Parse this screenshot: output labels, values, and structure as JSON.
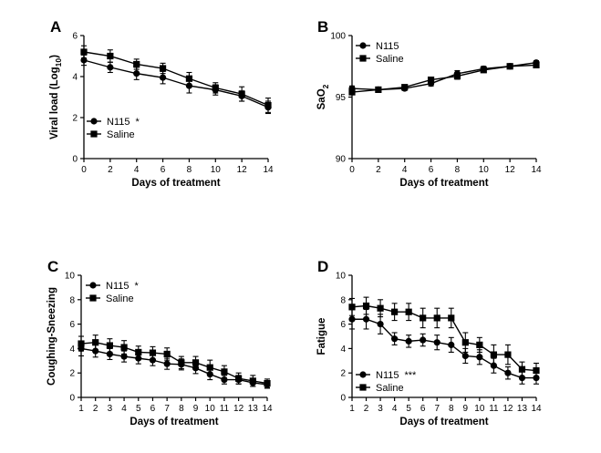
{
  "chart_data": [
    {
      "panel": "A",
      "type": "line",
      "ylabel_main": "Viral load (Log",
      "ylabel_sub": "10",
      "ylabel_end": ")",
      "xlabel": "Days of treatment",
      "x": [
        0,
        2,
        4,
        6,
        8,
        10,
        12,
        14
      ],
      "xticks": [
        "0",
        "2",
        "4",
        "6",
        "8",
        "10",
        "12",
        "14"
      ],
      "ylim": [
        0,
        6
      ],
      "yticks": [
        "0",
        "2",
        "4",
        "6"
      ],
      "legend_position": "bottom-left",
      "series": [
        {
          "name": "N115",
          "marker": "circle",
          "significance": "*",
          "values": [
            4.8,
            4.45,
            4.15,
            3.95,
            3.55,
            3.35,
            3.05,
            2.5
          ],
          "errors": [
            0.25,
            0.25,
            0.3,
            0.3,
            0.35,
            0.25,
            0.25,
            0.3
          ]
        },
        {
          "name": "Saline",
          "marker": "square",
          "significance": "",
          "values": [
            5.2,
            5.0,
            4.6,
            4.4,
            3.9,
            3.45,
            3.15,
            2.6
          ],
          "errors": [
            0.3,
            0.3,
            0.25,
            0.25,
            0.3,
            0.25,
            0.35,
            0.35
          ]
        }
      ]
    },
    {
      "panel": "B",
      "type": "line",
      "ylabel_main": "SaO",
      "ylabel_sub": "2",
      "ylabel_end": "",
      "xlabel": "Days of treatment",
      "x": [
        0,
        2,
        4,
        6,
        8,
        10,
        12,
        14
      ],
      "xticks": [
        "0",
        "2",
        "4",
        "6",
        "8",
        "10",
        "12",
        "14"
      ],
      "ylim": [
        90,
        100
      ],
      "yticks": [
        "90",
        "95",
        "100"
      ],
      "legend_position": "top-left",
      "series": [
        {
          "name": "N115",
          "marker": "circle",
          "significance": "",
          "values": [
            95.7,
            95.6,
            95.7,
            96.1,
            96.9,
            97.3,
            97.5,
            97.8
          ],
          "errors": [
            0.2,
            0.15,
            0.15,
            0.2,
            0.25,
            0.2,
            0.15,
            0.15
          ]
        },
        {
          "name": "Saline",
          "marker": "square",
          "significance": "",
          "values": [
            95.4,
            95.6,
            95.8,
            96.4,
            96.7,
            97.2,
            97.5,
            97.6
          ],
          "errors": [
            0.2,
            0.15,
            0.15,
            0.2,
            0.25,
            0.2,
            0.15,
            0.15
          ]
        }
      ]
    },
    {
      "panel": "C",
      "type": "line",
      "ylabel_main": "Coughing-Sneezing",
      "ylabel_sub": "",
      "ylabel_end": "",
      "xlabel": "Days of treatment",
      "x": [
        1,
        2,
        3,
        4,
        5,
        6,
        7,
        8,
        9,
        10,
        11,
        12,
        13,
        14
      ],
      "xticks": [
        "1",
        "2",
        "3",
        "4",
        "5",
        "6",
        "7",
        "8",
        "9",
        "10",
        "11",
        "12",
        "13",
        "14"
      ],
      "ylim": [
        0,
        10
      ],
      "yticks": [
        "0",
        "2",
        "4",
        "6",
        "8",
        "10"
      ],
      "legend_position": "top-left",
      "series": [
        {
          "name": "N115",
          "marker": "circle",
          "significance": "*",
          "values": [
            4.0,
            3.8,
            3.55,
            3.35,
            3.2,
            3.05,
            2.75,
            2.7,
            2.4,
            1.9,
            1.45,
            1.45,
            1.2,
            1.05
          ],
          "errors": [
            0.6,
            0.5,
            0.45,
            0.45,
            0.45,
            0.45,
            0.45,
            0.45,
            0.45,
            0.45,
            0.35,
            0.35,
            0.3,
            0.3
          ]
        },
        {
          "name": "Saline",
          "marker": "square",
          "significance": "",
          "values": [
            4.4,
            4.5,
            4.25,
            4.1,
            3.7,
            3.65,
            3.55,
            2.85,
            2.85,
            2.45,
            2.1,
            1.55,
            1.35,
            1.15
          ],
          "errors": [
            0.6,
            0.6,
            0.55,
            0.55,
            0.5,
            0.5,
            0.5,
            0.5,
            0.5,
            0.6,
            0.5,
            0.45,
            0.45,
            0.35
          ]
        }
      ]
    },
    {
      "panel": "D",
      "type": "line",
      "ylabel_main": "Fatigue",
      "ylabel_sub": "",
      "ylabel_end": "",
      "xlabel": "Days of treatment",
      "x": [
        1,
        2,
        3,
        4,
        5,
        6,
        7,
        8,
        9,
        10,
        11,
        12,
        13,
        14
      ],
      "xticks": [
        "1",
        "2",
        "3",
        "4",
        "5",
        "6",
        "7",
        "8",
        "9",
        "10",
        "11",
        "12",
        "13",
        "14"
      ],
      "ylim": [
        0,
        10
      ],
      "yticks": [
        "0",
        "2",
        "4",
        "6",
        "8",
        "10"
      ],
      "legend_position": "bottom-left",
      "series": [
        {
          "name": "N115",
          "marker": "circle",
          "significance": "***",
          "values": [
            6.4,
            6.4,
            6.0,
            4.8,
            4.6,
            4.7,
            4.5,
            4.3,
            3.4,
            3.3,
            2.6,
            2.0,
            1.6,
            1.6
          ],
          "errors": [
            0.8,
            0.8,
            0.8,
            0.5,
            0.5,
            0.5,
            0.6,
            0.6,
            0.6,
            0.6,
            0.6,
            0.5,
            0.5,
            0.5
          ]
        },
        {
          "name": "Saline",
          "marker": "square",
          "significance": "",
          "values": [
            7.4,
            7.5,
            7.3,
            7.0,
            7.0,
            6.5,
            6.5,
            6.5,
            4.5,
            4.3,
            3.5,
            3.5,
            2.3,
            2.2
          ],
          "errors": [
            0.7,
            0.7,
            0.7,
            0.7,
            0.7,
            0.8,
            0.8,
            0.8,
            0.8,
            0.6,
            0.8,
            0.8,
            0.6,
            0.6
          ]
        }
      ]
    }
  ]
}
